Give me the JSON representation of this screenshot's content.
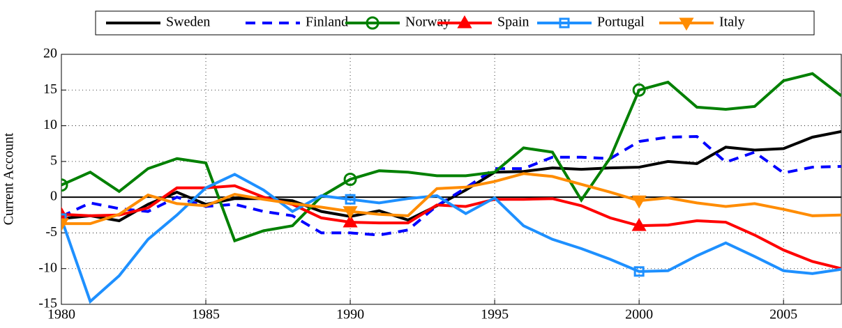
{
  "chart_data": {
    "type": "line",
    "ylabel": "Current Account",
    "x": [
      1980,
      1981,
      1982,
      1983,
      1984,
      1985,
      1986,
      1987,
      1988,
      1989,
      1990,
      1991,
      1992,
      1993,
      1994,
      1995,
      1996,
      1997,
      1998,
      1999,
      2000,
      2001,
      2002,
      2003,
      2004,
      2005,
      2006,
      2007
    ],
    "xlim": [
      1980,
      2007
    ],
    "xticks": [
      1980,
      1985,
      1990,
      1995,
      2000,
      2005
    ],
    "ylim": [
      -15,
      20
    ],
    "yticks": [
      -15,
      -10,
      -5,
      0,
      5,
      10,
      15,
      20
    ],
    "grid": true,
    "legend": "top",
    "series": [
      {
        "name": "Sweden",
        "color": "#000000",
        "linestyle": "-",
        "marker": "none",
        "values": [
          -3.0,
          -2.6,
          -3.3,
          -1.0,
          0.7,
          -1.0,
          -0.2,
          -0.2,
          -0.5,
          -2.0,
          -2.7,
          -1.9,
          -3.2,
          -1.2,
          1.0,
          3.5,
          3.6,
          4.1,
          3.9,
          4.1,
          4.2,
          5.0,
          4.7,
          7.0,
          6.6,
          6.8,
          8.4,
          9.2
        ]
      },
      {
        "name": "Finland",
        "color": "#0000ff",
        "linestyle": "--",
        "marker": "none",
        "values": [
          -2.7,
          -0.8,
          -1.6,
          -2.0,
          0.0,
          -1.3,
          -1.0,
          -2.0,
          -2.6,
          -5.0,
          -5.0,
          -5.3,
          -4.6,
          -1.2,
          1.3,
          4.0,
          4.0,
          5.6,
          5.6,
          5.4,
          7.8,
          8.4,
          8.5,
          4.9,
          6.3,
          3.4,
          4.2,
          4.3
        ]
      },
      {
        "name": "Norway",
        "color": "#008000",
        "linestyle": "-",
        "marker": "o",
        "values": [
          1.7,
          3.5,
          0.8,
          4.0,
          5.4,
          4.8,
          -6.1,
          -4.7,
          -4.0,
          0.1,
          2.5,
          3.7,
          3.5,
          3.0,
          3.0,
          3.5,
          6.9,
          6.3,
          -0.4,
          5.5,
          15.0,
          16.1,
          12.6,
          12.3,
          12.7,
          16.3,
          17.3,
          14.2
        ]
      },
      {
        "name": "Spain",
        "color": "#ff0000",
        "linestyle": "-",
        "marker": "^",
        "values": [
          -2.4,
          -2.6,
          -2.5,
          -1.5,
          1.3,
          1.3,
          1.6,
          0.0,
          -1.0,
          -2.9,
          -3.5,
          -3.6,
          -3.6,
          -1.1,
          -1.3,
          -0.3,
          -0.3,
          -0.2,
          -1.2,
          -2.9,
          -4.0,
          -3.9,
          -3.3,
          -3.5,
          -5.3,
          -7.4,
          -9.0,
          -10.0
        ]
      },
      {
        "name": "Portugal",
        "color": "#1e90ff",
        "linestyle": "-",
        "marker": "s",
        "values": [
          -3.0,
          -14.6,
          -11.0,
          -5.9,
          -2.5,
          1.3,
          3.2,
          1.0,
          -2.0,
          0.2,
          -0.3,
          -0.8,
          -0.2,
          0.2,
          -2.3,
          -0.1,
          -4.0,
          -5.9,
          -7.2,
          -8.7,
          -10.4,
          -10.3,
          -8.2,
          -6.4,
          -8.3,
          -10.3,
          -10.7,
          -10.1
        ]
      },
      {
        "name": "Italy",
        "color": "#ff8c00",
        "linestyle": "-",
        "marker": "v",
        "values": [
          -3.7,
          -3.7,
          -2.4,
          0.3,
          -0.9,
          -1.2,
          0.4,
          -0.3,
          -0.9,
          -1.4,
          -2.0,
          -2.4,
          -2.6,
          1.2,
          1.4,
          2.2,
          3.3,
          2.9,
          1.8,
          0.7,
          -0.5,
          -0.1,
          -0.8,
          -1.3,
          -0.9,
          -1.7,
          -2.6,
          -2.5
        ]
      }
    ]
  }
}
